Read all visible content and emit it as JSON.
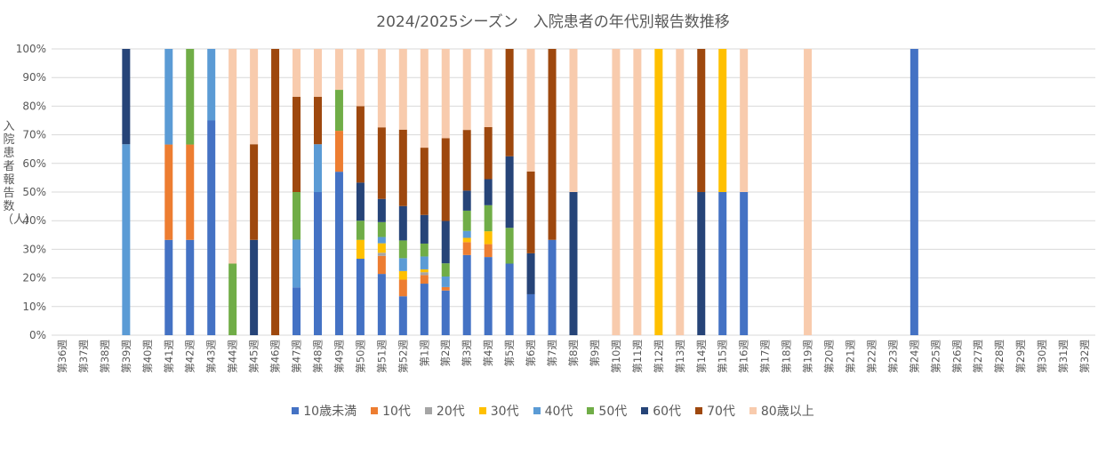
{
  "chart_data": {
    "type": "bar",
    "stacked": true,
    "percent_stacked": true,
    "title": "2024/2025シーズン　入院患者の年代別報告数推移",
    "ylabel": "入院患者報告数（人）",
    "xlabel": "",
    "ylim": [
      0,
      100
    ],
    "yticks": [
      "0%",
      "10%",
      "20%",
      "30%",
      "40%",
      "50%",
      "60%",
      "70%",
      "80%",
      "90%",
      "100%"
    ],
    "grid": true,
    "legend_position": "bottom",
    "categories": [
      "第36週",
      "第37週",
      "第38週",
      "第39週",
      "第40週",
      "第41週",
      "第42週",
      "第43週",
      "第44週",
      "第45週",
      "第46週",
      "第47週",
      "第48週",
      "第49週",
      "第50週",
      "第51週",
      "第52週",
      "第1週",
      "第2週",
      "第3週",
      "第4週",
      "第5週",
      "第6週",
      "第7週",
      "第8週",
      "第9週",
      "第10週",
      "第11週",
      "第12週",
      "第13週",
      "第14週",
      "第15週",
      "第16週",
      "第17週",
      "第18週",
      "第19週",
      "第20週",
      "第21週",
      "第22週",
      "第23週",
      "第24週",
      "第25週",
      "第26週",
      "第27週",
      "第28週",
      "第29週",
      "第30週",
      "第31週",
      "第32週"
    ],
    "series": [
      {
        "name": "10歳未満",
        "color": "#4472C4",
        "values": [
          0,
          0,
          0,
          0,
          0,
          33.3,
          33.3,
          75,
          0,
          0,
          0,
          16.7,
          50,
          57.1,
          26.7,
          21.4,
          13.6,
          18,
          15.6,
          28,
          27.3,
          25,
          14.3,
          33.3,
          0,
          0,
          0,
          0,
          0,
          0,
          0,
          50,
          50,
          0,
          0,
          0,
          0,
          0,
          0,
          0,
          100,
          0,
          0,
          0,
          0,
          0,
          0,
          0,
          0
        ]
      },
      {
        "name": "10代",
        "color": "#ED7D31",
        "values": [
          0,
          0,
          0,
          0,
          0,
          33.3,
          33.3,
          0,
          0,
          0,
          0,
          0,
          0,
          14.3,
          0,
          6.3,
          5.8,
          3,
          1.2,
          4.5,
          4.5,
          0,
          0,
          0,
          0,
          0,
          0,
          0,
          0,
          0,
          0,
          0,
          0,
          0,
          0,
          0,
          0,
          0,
          0,
          0,
          0,
          0,
          0,
          0,
          0,
          0,
          0,
          0,
          0
        ]
      },
      {
        "name": "20代",
        "color": "#A5A5A5",
        "values": [
          0,
          0,
          0,
          0,
          0,
          0,
          0,
          0,
          0,
          0,
          0,
          0,
          0,
          0,
          0,
          1.1,
          0,
          1,
          0,
          0,
          0,
          0,
          0,
          0,
          0,
          0,
          0,
          0,
          0,
          0,
          0,
          0,
          0,
          0,
          0,
          0,
          0,
          0,
          0,
          0,
          0,
          0,
          0,
          0,
          0,
          0,
          0,
          0,
          0
        ]
      },
      {
        "name": "30代",
        "color": "#FFC000",
        "values": [
          0,
          0,
          0,
          0,
          0,
          0,
          0,
          0,
          0,
          0,
          0,
          0,
          0,
          0,
          6.6,
          3.3,
          3,
          1,
          0,
          1.5,
          4.5,
          0,
          0,
          0,
          0,
          0,
          0,
          0,
          100,
          0,
          0,
          50,
          0,
          0,
          0,
          0,
          0,
          0,
          0,
          0,
          0,
          0,
          0,
          0,
          0,
          0,
          0,
          0,
          0
        ]
      },
      {
        "name": "40代",
        "color": "#5B9BD5",
        "values": [
          0,
          0,
          0,
          66.7,
          0,
          33.4,
          0,
          25,
          0,
          0,
          0,
          16.7,
          16.7,
          0,
          0,
          2.2,
          4.5,
          4.5,
          3.7,
          2.4,
          0,
          0,
          0,
          0,
          0,
          0,
          0,
          0,
          0,
          0,
          0,
          0,
          0,
          0,
          0,
          0,
          0,
          0,
          0,
          0,
          0,
          0,
          0,
          0,
          0,
          0,
          0,
          0,
          0
        ]
      },
      {
        "name": "50代",
        "color": "#70AD47",
        "values": [
          0,
          0,
          0,
          0,
          0,
          0,
          33.4,
          0,
          25,
          0,
          0,
          16.6,
          0,
          14.3,
          6.7,
          5.2,
          6.2,
          4.5,
          4.6,
          7.1,
          9.1,
          12.5,
          0,
          0,
          0,
          0,
          0,
          0,
          0,
          0,
          0,
          0,
          0,
          0,
          0,
          0,
          0,
          0,
          0,
          0,
          0,
          0,
          0,
          0,
          0,
          0,
          0,
          0,
          0
        ]
      },
      {
        "name": "60代",
        "color": "#264478",
        "values": [
          0,
          0,
          0,
          33.3,
          0,
          0,
          0,
          0,
          0,
          33.3,
          0,
          0,
          0,
          0,
          13.3,
          8.1,
          12,
          10,
          14.8,
          7,
          9.1,
          25,
          14.3,
          0,
          50,
          0,
          0,
          0,
          0,
          0,
          50,
          0,
          0,
          0,
          0,
          0,
          0,
          0,
          0,
          0,
          0,
          0,
          0,
          0,
          0,
          0,
          0,
          0,
          0
        ]
      },
      {
        "name": "70代",
        "color": "#9E480E",
        "values": [
          0,
          0,
          0,
          0,
          0,
          0,
          0,
          0,
          0,
          33.4,
          100,
          33.3,
          16.6,
          0,
          26.7,
          25,
          26.7,
          23.5,
          28.9,
          21.2,
          18.2,
          37.5,
          28.6,
          66.7,
          0,
          0,
          0,
          0,
          0,
          0,
          50,
          0,
          0,
          0,
          0,
          0,
          0,
          0,
          0,
          0,
          0,
          0,
          0,
          0,
          0,
          0,
          0,
          0,
          0
        ]
      },
      {
        "name": "80歳以上",
        "color": "#F8CBAD",
        "values": [
          0,
          0,
          0,
          0,
          0,
          0,
          0,
          0,
          75,
          33.3,
          0,
          16.7,
          16.7,
          14.3,
          20,
          27.4,
          28.2,
          34.5,
          31.2,
          28.3,
          27.3,
          0,
          42.8,
          0,
          50,
          0,
          100,
          100,
          0,
          100,
          0,
          0,
          50,
          0,
          0,
          100,
          0,
          0,
          0,
          0,
          0,
          0,
          0,
          0,
          0,
          0,
          0,
          0,
          0
        ]
      }
    ]
  }
}
